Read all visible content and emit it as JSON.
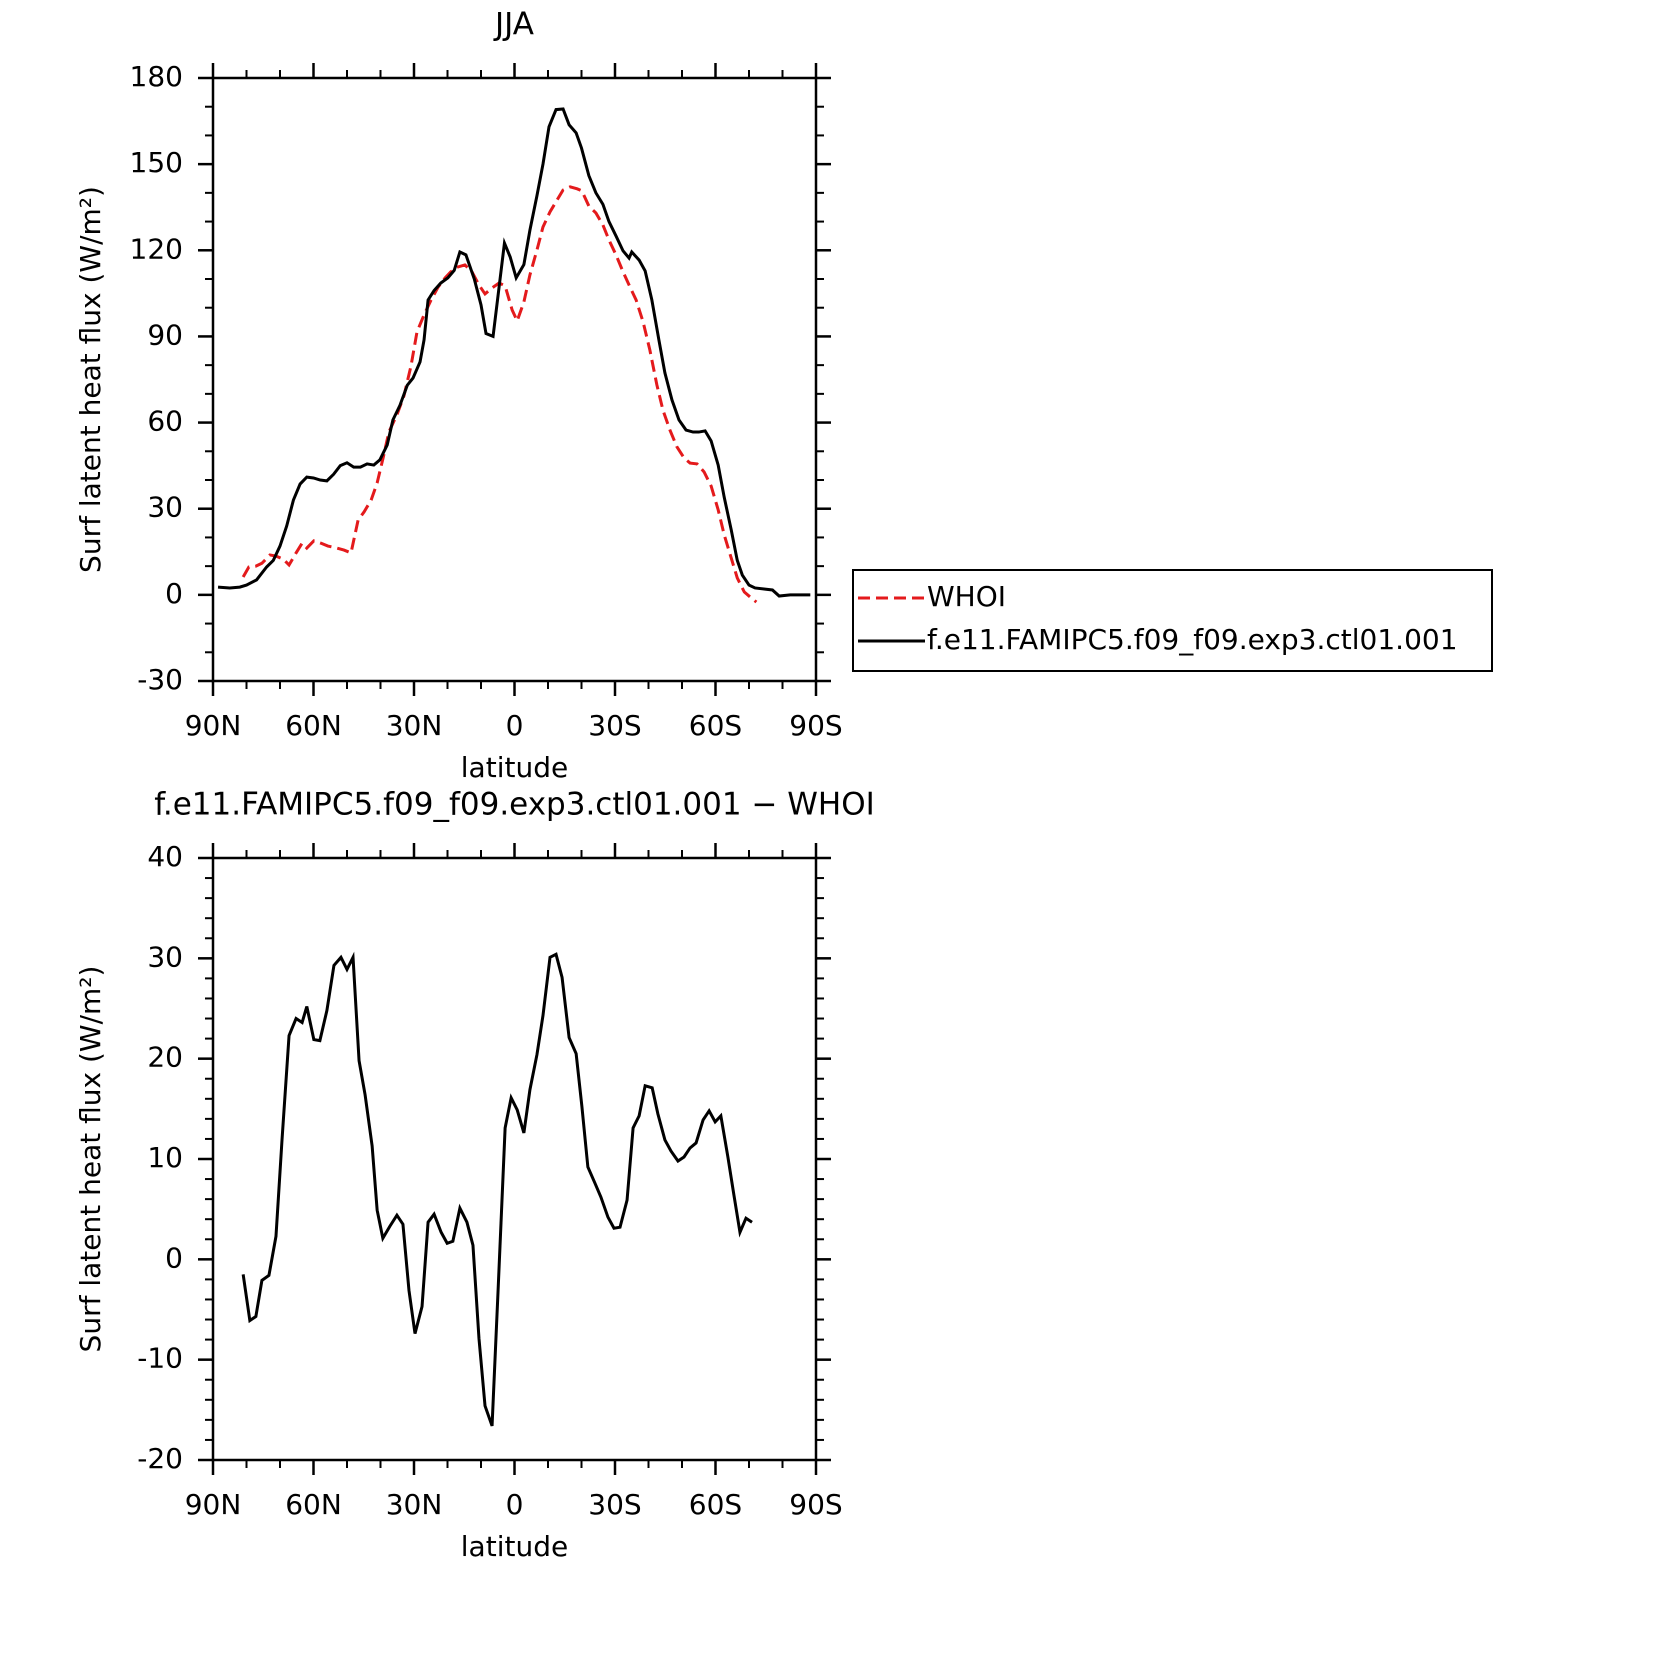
{
  "chart_data": [
    {
      "type": "line",
      "title": "JJA",
      "x_label": "latitude",
      "y_label": "Surf latent heat flux (W/m²)",
      "xlim": [
        90,
        -90
      ],
      "xticks": [
        {
          "value": 90,
          "label": "90N"
        },
        {
          "value": 60,
          "label": "60N"
        },
        {
          "value": 30,
          "label": "30N"
        },
        0,
        {
          "value": -30,
          "label": "30S"
        },
        {
          "value": -60,
          "label": "60S"
        },
        {
          "value": -90,
          "label": "90S"
        }
      ],
      "xminorticks": [
        80,
        70,
        50,
        40,
        20,
        10,
        -10,
        -20,
        -40,
        -50,
        -70,
        -80
      ],
      "ylim": [
        -30,
        180
      ],
      "yticks": [
        -30,
        0,
        30,
        60,
        90,
        120,
        150,
        180
      ],
      "yminorticks": [
        -20,
        -10,
        10,
        20,
        40,
        50,
        70,
        80,
        100,
        110,
        130,
        140,
        160,
        170
      ],
      "legend": "outside-right",
      "series": [
        {
          "name": "WHOI",
          "color": "#e41a1c",
          "line_style": "dashed",
          "x": [
            81,
            79.3,
            77.2,
            75.4,
            73,
            71.2,
            69.1,
            67.3,
            65.2,
            63.4,
            62,
            59.9,
            57.8,
            55.7,
            53,
            50.9,
            48.8,
            46.7,
            44.9,
            42.8,
            41,
            39.3,
            37.5,
            35.1,
            33,
            30.9,
            29.1,
            27,
            24.9,
            22.8,
            20.7,
            19,
            16.9,
            14.8,
            12.7,
            10.6,
            8.8,
            6.7,
            4.6,
            2.8,
            0.7,
            -0.8,
            -2.8,
            -4.6,
            -6.7,
            -8.5,
            -10.6,
            -12.7,
            -14.5,
            -16.6,
            -18.7,
            -20.1,
            -22.2,
            -24.3,
            -26.4,
            -28.2,
            -30.3,
            -32.4,
            -34.2,
            -36.3,
            -38.4,
            -40.4,
            -42.5,
            -44.3,
            -46.4,
            -48.5,
            -50.6,
            -52.4,
            -54.5,
            -56.6,
            -58.7,
            -60.8,
            -62.6,
            -64.7,
            -66.5,
            -68.6,
            -70.7,
            -72.2
          ],
          "values": [
            6.2,
            9.7,
            10,
            11,
            13.9,
            13.5,
            12.5,
            10.4,
            14.6,
            18,
            16.3,
            18.8,
            18,
            17,
            16.3,
            15.6,
            14.6,
            26,
            28.9,
            33,
            39,
            47.3,
            56.7,
            62.7,
            69.3,
            79.7,
            91.6,
            97.5,
            102.7,
            107.2,
            110.4,
            112.5,
            114.2,
            114.9,
            112.5,
            107.9,
            104.8,
            106.9,
            108.6,
            107.6,
            99.2,
            95.4,
            102,
            111.4,
            120.1,
            128.1,
            133.4,
            137.5,
            141,
            142.1,
            141.4,
            140.7,
            135.4,
            133,
            128.8,
            123.6,
            118.4,
            112.5,
            107.9,
            102.7,
            95,
            85.3,
            73.1,
            64.4,
            57.4,
            51.5,
            47.7,
            45.9,
            45.6,
            42.8,
            37.9,
            29.6,
            20.9,
            12.8,
            5.9,
            1,
            -1.1,
            -2.5
          ]
        },
        {
          "name": "f.e11.FAMIPC5.f09_f09.exp3.ctl01.001",
          "color": "#000000",
          "line_style": "solid",
          "x": [
            88.5,
            85,
            82,
            80,
            77,
            74,
            72,
            70,
            68,
            66,
            64,
            62,
            60,
            58,
            56,
            54,
            52,
            50,
            48,
            46,
            44,
            42,
            40.2,
            38,
            36.3,
            34.2,
            32,
            30.3,
            28.2,
            27,
            25.8,
            24,
            22,
            19.9,
            18,
            16.3,
            14.5,
            12,
            10,
            8.5,
            6.4,
            3,
            1.3,
            -0.5,
            -2.8,
            -4.6,
            -6.7,
            -8.5,
            -10.3,
            -12.4,
            -14.5,
            -16.3,
            -18.4,
            -20,
            -22.2,
            -24.3,
            -26.4,
            -28.2,
            -30.3,
            -32.4,
            -34.2,
            -35,
            -37.2,
            -39,
            -41,
            -43.1,
            -44.9,
            -47,
            -49.1,
            -51.2,
            -53.3,
            -55,
            -56.9,
            -58.7,
            -60.8,
            -62.6,
            -64.7,
            -66.5,
            -68,
            -70,
            -71.8,
            -74.8,
            -77,
            -79,
            -82.3,
            -88.3
          ],
          "values": [
            2.7,
            2.4,
            2.7,
            3.4,
            5.2,
            9.7,
            12,
            17,
            24,
            33,
            38.6,
            41,
            40.7,
            40,
            39.7,
            42,
            45,
            46,
            44.5,
            44.5,
            45.6,
            45.2,
            47,
            52.2,
            60.9,
            66,
            73,
            75.5,
            81.1,
            88.8,
            102.7,
            106,
            108.6,
            110.4,
            113,
            119.4,
            118.4,
            110,
            101,
            91,
            90,
            122.5,
            117.7,
            110.4,
            115,
            127,
            139,
            150,
            163,
            169,
            169.2,
            163.7,
            160.9,
            155.6,
            146,
            140,
            136,
            130,
            125,
            119.8,
            117.3,
            119.4,
            116.6,
            112.8,
            102.7,
            88.8,
            77.3,
            67.9,
            60.9,
            57.4,
            56.7,
            56.7,
            57.1,
            53.6,
            45.2,
            34,
            22.6,
            12,
            6.9,
            3.4,
            2.4,
            2,
            1.7,
            -0.4,
            0,
            0
          ]
        }
      ]
    },
    {
      "type": "line",
      "title": "f.e11.FAMIPC5.f09_f09.exp3.ctl01.001 − WHOI",
      "x_label": "latitude",
      "y_label": "Surf latent heat flux (W/m²)",
      "xlim": [
        90,
        -90
      ],
      "xticks": [
        {
          "value": 90,
          "label": "90N"
        },
        {
          "value": 60,
          "label": "60N"
        },
        {
          "value": 30,
          "label": "30N"
        },
        0,
        {
          "value": -30,
          "label": "30S"
        },
        {
          "value": -60,
          "label": "60S"
        },
        {
          "value": -90,
          "label": "90S"
        }
      ],
      "xminorticks": [
        80,
        70,
        50,
        40,
        20,
        10,
        -10,
        -20,
        -40,
        -50,
        -70,
        -80
      ],
      "ylim": [
        -20,
        40
      ],
      "yticks": [
        -20,
        -10,
        0,
        10,
        20,
        30,
        40
      ],
      "yminorticks": [
        -18,
        -16,
        -14,
        -12,
        -8,
        -6,
        -4,
        -2,
        2,
        4,
        6,
        8,
        12,
        14,
        16,
        18,
        22,
        24,
        26,
        28,
        32,
        34,
        36,
        38
      ],
      "series": [
        {
          "color": "#000000",
          "line_style": "solid",
          "x": [
            81,
            79,
            77.2,
            75.4,
            73.3,
            71.2,
            69.4,
            67.3,
            65.2,
            63.4,
            62,
            59.9,
            58.1,
            56,
            53.9,
            51.8,
            50,
            48.2,
            46.4,
            44.6,
            42.5,
            41,
            39.3,
            37.2,
            35.1,
            33.3,
            31.5,
            29.7,
            27.6,
            25.8,
            24,
            21.9,
            20.1,
            18.4,
            16.3,
            14.2,
            12.4,
            10.6,
            8.8,
            6.7,
            4.9,
            2.8,
            1,
            -0.8,
            -2.8,
            -4.6,
            -6.7,
            -8.5,
            -10.6,
            -12.4,
            -14.2,
            -16.3,
            -18.4,
            -20.1,
            -21.9,
            -24,
            -25.8,
            -27.9,
            -29.7,
            -31.5,
            -33.6,
            -35.4,
            -37.2,
            -39,
            -41.1,
            -42.8,
            -44.9,
            -46.7,
            -48.8,
            -50.6,
            -52.4,
            -54.2,
            -56.3,
            -58.1,
            -59.9,
            -61.6,
            -63.7,
            -65.5,
            -67.3,
            -69.1,
            -70.9
          ],
          "values": [
            -1.5,
            -6.1,
            -5.7,
            -2.1,
            -1.6,
            2.3,
            11.9,
            22.3,
            24,
            23.6,
            25.2,
            21.9,
            21.8,
            24.8,
            29.3,
            30.1,
            28.9,
            30.1,
            19.8,
            16.4,
            11.3,
            4.9,
            2.1,
            3.3,
            4.4,
            3.5,
            -3.1,
            -7.4,
            -4.7,
            3.7,
            4.5,
            2.7,
            1.6,
            1.8,
            5.1,
            3.7,
            1.4,
            -7.9,
            -14.6,
            -16.6,
            -3.1,
            13.1,
            16.1,
            14.9,
            12.6,
            16.9,
            20.4,
            24.3,
            30.1,
            30.4,
            28.1,
            22.1,
            20.5,
            15.3,
            9.2,
            7.6,
            6.2,
            4.2,
            3.1,
            3.2,
            5.9,
            13.1,
            14.3,
            17.3,
            17.1,
            14.5,
            11.9,
            10.8,
            9.8,
            10.2,
            11.1,
            11.6,
            13.9,
            14.8,
            13.7,
            14.3,
            10.2,
            6.4,
            2.7,
            4.1,
            3.7
          ]
        }
      ]
    }
  ]
}
